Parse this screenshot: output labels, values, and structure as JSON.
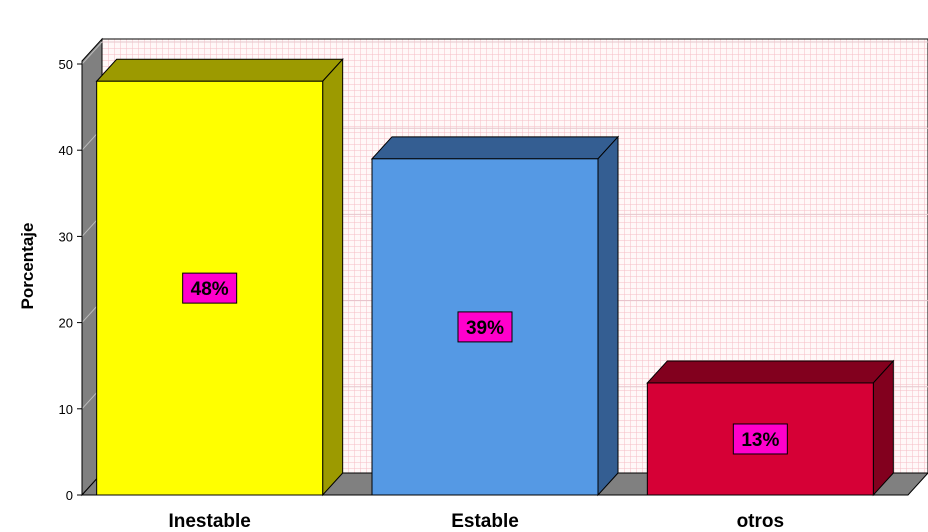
{
  "chart_data": {
    "type": "bar",
    "categories": [
      "Inestable",
      "Estable",
      "otros"
    ],
    "values": [
      48,
      39,
      13
    ],
    "data_labels": [
      "48%",
      "39%",
      "13%"
    ],
    "ylabel": "Porcentaje",
    "xlabel": "",
    "title": "",
    "ylim": [
      0,
      50
    ],
    "yticks": [
      "0",
      "10",
      "20",
      "30",
      "40",
      "50"
    ],
    "grid": true,
    "style": "3d",
    "colors": {
      "bars": [
        "#ffff00",
        "#5599e4",
        "#d60036"
      ],
      "bar_sides": [
        "#9c9a00",
        "#345e92",
        "#82001e"
      ],
      "data_label_bg": "#ff00cc",
      "plot_bg": "#fff8f8",
      "grid_minor": "#f7c0c8",
      "wall_left": "#808080",
      "floor": "#808080"
    }
  }
}
